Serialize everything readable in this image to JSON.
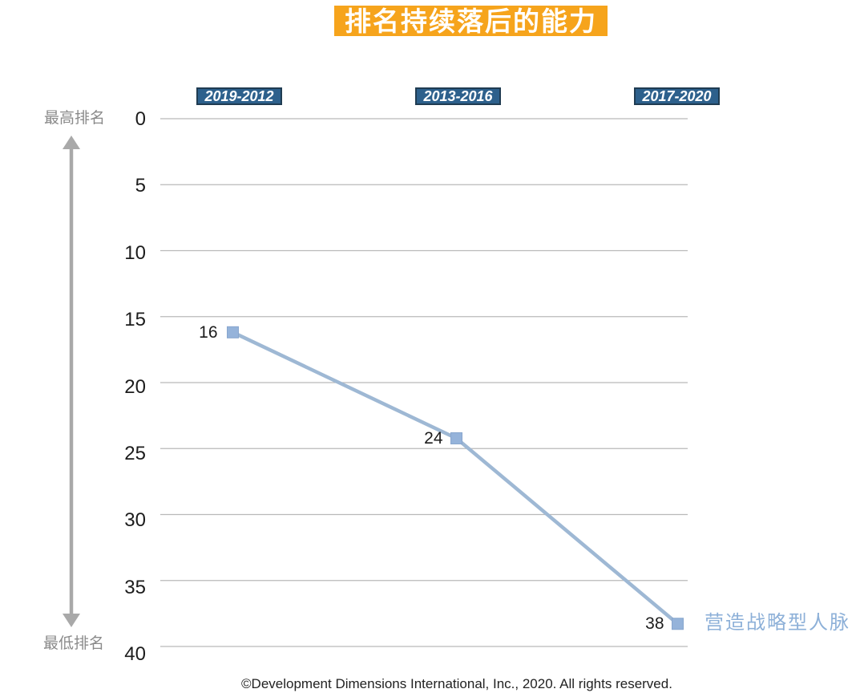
{
  "page": {
    "background": "#ffffff"
  },
  "header": {
    "title": "排名持续落后的能力"
  },
  "axis_annotations": {
    "top": "最高排名",
    "bottom": "最低排名"
  },
  "footer": {
    "text": "©Development Dimensions International, Inc., 2020. All rights reserved."
  },
  "colors": {
    "title_bg": "#F6A41C",
    "title_text": "#FFFFFF",
    "badge_bg": "#2D608C",
    "badge_border": "#203C52",
    "badge_text": "#FFFFFF",
    "line": "#9EB8D4",
    "marker_fill": "#95B3DA",
    "marker_stroke": "#88A6CE",
    "gridline": "#B9B9B9",
    "tick_text": "#1C1C1C",
    "data_label_text": "#1C1C1C",
    "annotation_text": "#8A8A8A",
    "arrow": "#A9A9A9",
    "series_label": "#8DB0D8",
    "footer_text": "#222222"
  },
  "chart_data": {
    "type": "line",
    "title": "排名持续落后的能力",
    "categories": [
      "2019-2012",
      "2013-2016",
      "2017-2020"
    ],
    "series": [
      {
        "name": "营造战略型人脉",
        "values": [
          16,
          24,
          38
        ]
      }
    ],
    "data_labels": [
      "16",
      "24",
      "38"
    ],
    "yticks": [
      0,
      5,
      10,
      15,
      20,
      25,
      30,
      35,
      40
    ],
    "ylim": [
      0,
      40
    ],
    "y_axis_direction": "inverted (0 = highest rank at top, 40 = lowest rank at bottom)",
    "xlabel": "",
    "ylabel": "",
    "grid": true,
    "legend_position": "right of last data point"
  }
}
